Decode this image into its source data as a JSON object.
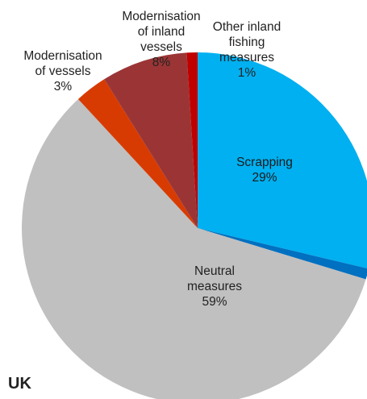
{
  "chart_data": {
    "type": "pie",
    "title": "UK",
    "start_angle_deg": 0,
    "direction": "clockwise",
    "slices": [
      {
        "name": "Scrapping",
        "value": 29,
        "label_lines": [
          "Scrapping",
          "29%"
        ],
        "color": "#00b0f0"
      },
      {
        "name": "Other inland fishing measures",
        "value": 1,
        "label_lines": [
          "Other inland",
          "fishing",
          "measures",
          "1%"
        ],
        "color": "#0070c0"
      },
      {
        "name": "Neutral measures",
        "value": 59,
        "label_lines": [
          "Neutral",
          "measures",
          "59%"
        ],
        "color": "#c0c0c0"
      },
      {
        "name": "Modernisation of vessels",
        "value": 3,
        "label_lines": [
          "Modernisation",
          "of vessels",
          "3%"
        ],
        "color": "#d83b01"
      },
      {
        "name": "Modernisation of inland vessels",
        "value": 8,
        "label_lines": [
          "Modernisation",
          "of inland",
          "vessels",
          "8%"
        ],
        "color": "#9b3535"
      },
      {
        "name": "Other inland fishing measures",
        "value": 1,
        "label_lines": [],
        "color": "#c00000"
      }
    ]
  }
}
